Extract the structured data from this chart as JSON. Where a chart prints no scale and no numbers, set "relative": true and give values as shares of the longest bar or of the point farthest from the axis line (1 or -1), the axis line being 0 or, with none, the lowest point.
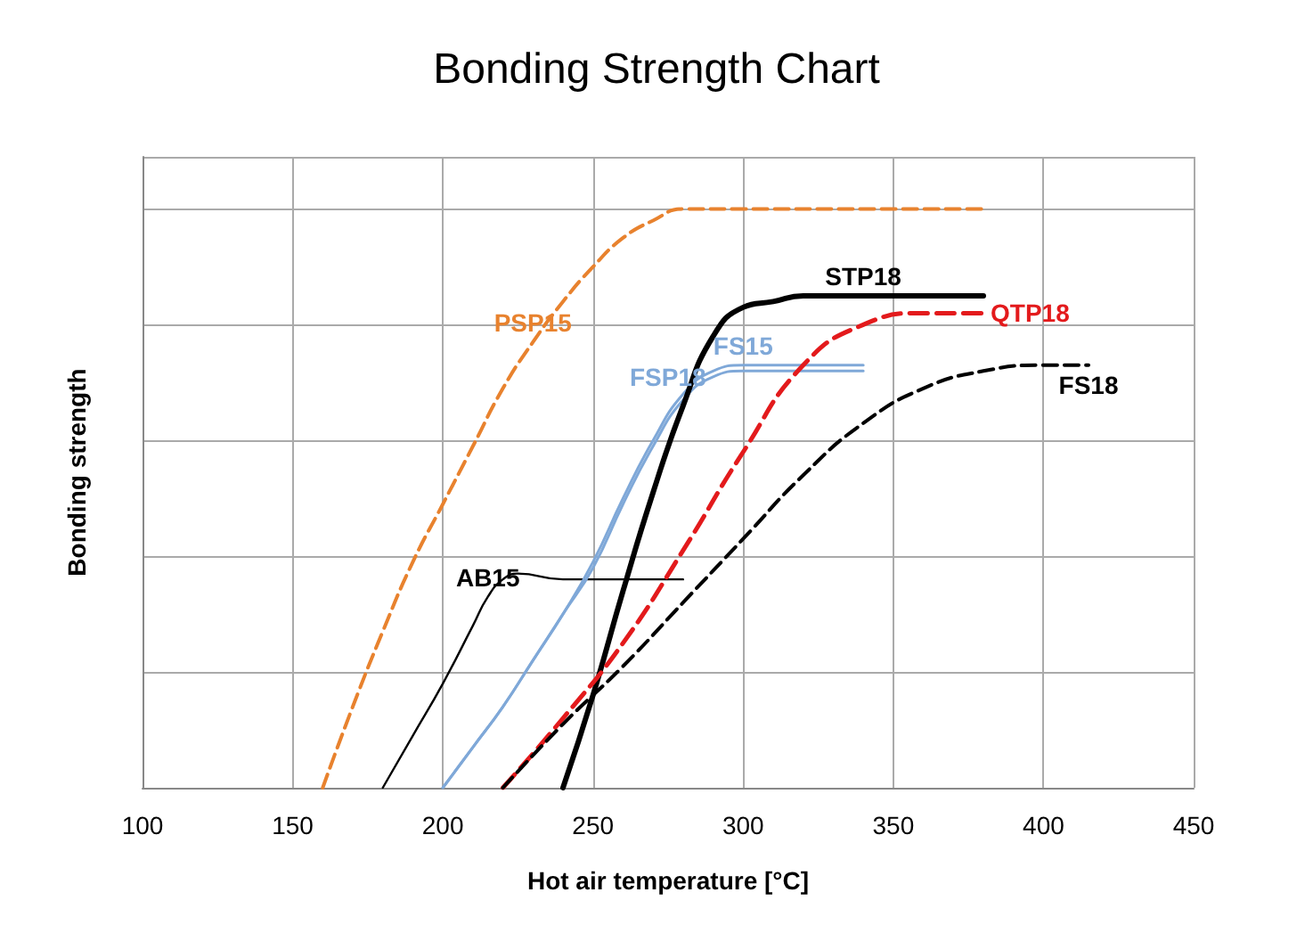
{
  "chart_data": {
    "type": "line",
    "title": "Bonding Strength Chart",
    "xlabel": "Hot air temperature [°C]",
    "ylabel": "Bonding strength",
    "relative": true,
    "xlim": [
      100,
      450
    ],
    "xticks": [
      100,
      150,
      200,
      250,
      300,
      350,
      400,
      450
    ],
    "grid": true,
    "legend": false,
    "marker": "none",
    "series": [
      {
        "name": "PSP15",
        "color": "#e8822e",
        "line_style": "dashed",
        "x": [
          160,
          170,
          180,
          190,
          200,
          210,
          220,
          230,
          240,
          250,
          260,
          270,
          280,
          300,
          340,
          380
        ],
        "values": [
          0,
          0.14,
          0.27,
          0.39,
          0.49,
          0.59,
          0.69,
          0.77,
          0.84,
          0.9,
          0.95,
          0.98,
          1,
          1,
          1,
          1
        ]
      },
      {
        "name": "AB15",
        "color": "#000000",
        "line_style": "solid",
        "x": [
          180,
          190,
          200,
          210,
          215,
          220,
          225,
          240,
          260,
          280
        ],
        "values": [
          0,
          0.09,
          0.18,
          0.28,
          0.33,
          0.36,
          0.37,
          0.36,
          0.36,
          0.36
        ]
      },
      {
        "name": "FS15",
        "color": "#7fa8d8",
        "line_style": "solid",
        "x": [
          200,
          210,
          220,
          230,
          240,
          250,
          260,
          270,
          280,
          290,
          300,
          310,
          320,
          340
        ],
        "values": [
          0,
          0.07,
          0.14,
          0.22,
          0.3,
          0.39,
          0.5,
          0.6,
          0.68,
          0.72,
          0.73,
          0.73,
          0.73,
          0.73
        ]
      },
      {
        "name": "FSP18",
        "color": "#7fa8d8",
        "line_style": "solid",
        "x": [
          200,
          210,
          220,
          230,
          240,
          250,
          260,
          270,
          280,
          290,
          300,
          320,
          340
        ],
        "values": [
          0,
          0.07,
          0.14,
          0.22,
          0.3,
          0.38,
          0.49,
          0.59,
          0.67,
          0.71,
          0.72,
          0.72,
          0.72
        ]
      },
      {
        "name": "STP18",
        "color": "#000000",
        "line_style": "solid",
        "x": [
          240,
          250,
          260,
          270,
          280,
          290,
          300,
          310,
          320,
          340,
          360,
          380
        ],
        "values": [
          0,
          0.16,
          0.34,
          0.51,
          0.66,
          0.78,
          0.83,
          0.84,
          0.85,
          0.85,
          0.85,
          0.85
        ]
      },
      {
        "name": "QTP18",
        "color": "#e31a1c",
        "line_style": "dashed",
        "x": [
          220,
          240,
          260,
          280,
          300,
          320,
          340,
          360,
          380
        ],
        "values": [
          0,
          0.12,
          0.25,
          0.41,
          0.58,
          0.73,
          0.8,
          0.82,
          0.82
        ]
      },
      {
        "name": "FS18",
        "color": "#000000",
        "line_style": "dashed",
        "x": [
          220,
          240,
          260,
          280,
          300,
          320,
          340,
          360,
          380,
          400,
          415
        ],
        "values": [
          0,
          0.11,
          0.21,
          0.32,
          0.43,
          0.54,
          0.63,
          0.69,
          0.72,
          0.73,
          0.73
        ]
      }
    ]
  }
}
